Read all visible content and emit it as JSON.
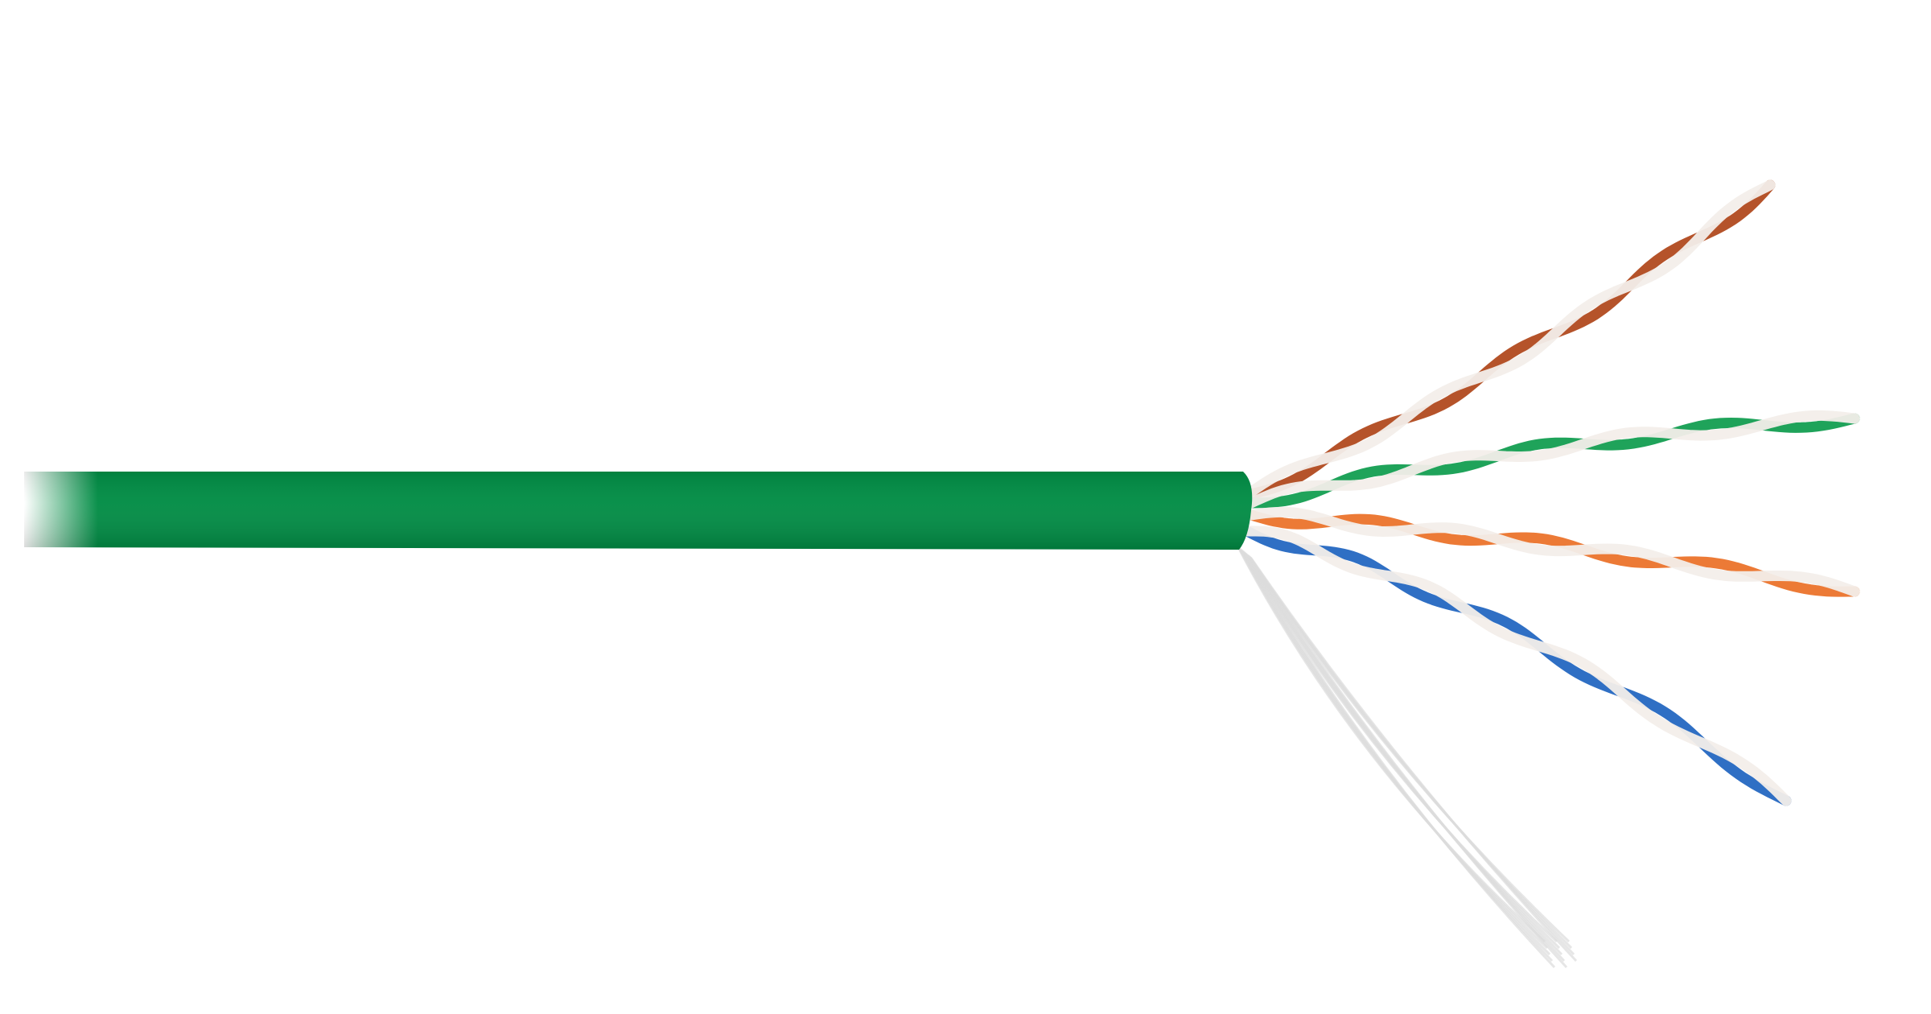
{
  "image": {
    "subject": "cable",
    "background": "#ffffff",
    "jacket_color": "#008c44",
    "pairs": [
      {
        "name": "brown",
        "color": "#b5532a",
        "stripe": "#f3eeea"
      },
      {
        "name": "green",
        "color": "#1fa35a",
        "stripe": "#f3eeea"
      },
      {
        "name": "orange",
        "color": "#ec7a36",
        "stripe": "#f3eeea"
      },
      {
        "name": "blue",
        "color": "#2f6fc4",
        "stripe": "#f3eeea"
      }
    ],
    "filler_color": "#dcdcdc"
  }
}
